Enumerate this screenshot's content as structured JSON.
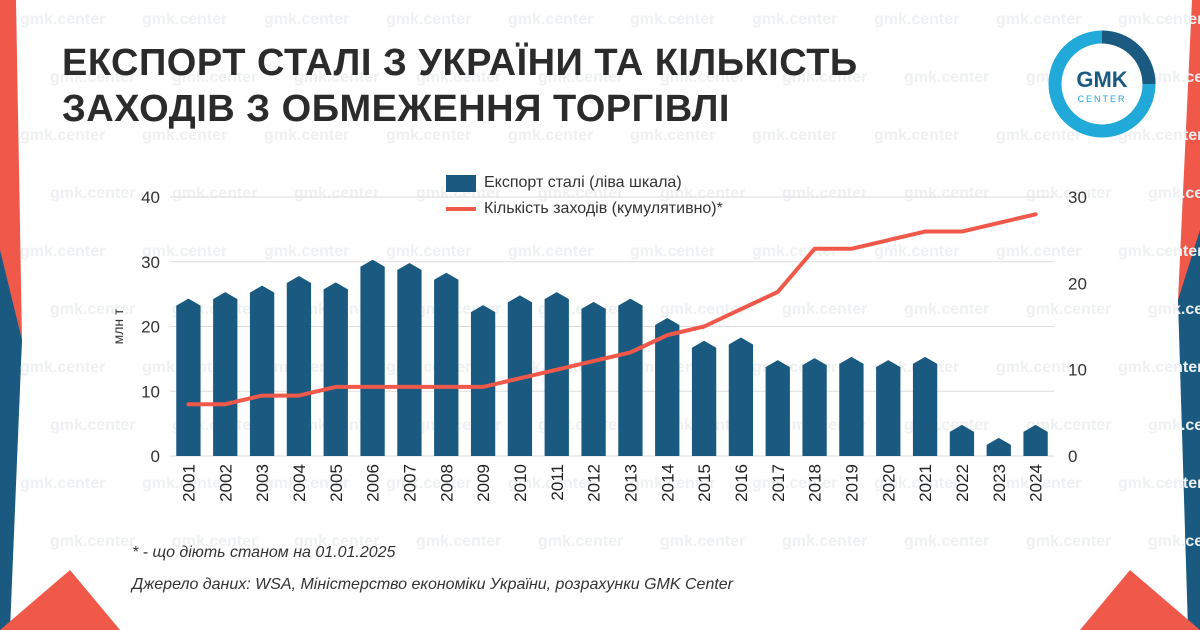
{
  "title_lines": [
    "ЕКСПОРТ СТАЛІ З УКРАЇНИ ТА КІЛЬКІСТЬ",
    "ЗАХОДІВ З ОБМЕЖЕННЯ ТОРГІВЛІ"
  ],
  "logo": {
    "line1": "GMK",
    "line2": "CENTER"
  },
  "watermark_text": "gmk.center",
  "colors": {
    "bar": "#1a5a80",
    "line": "#f0584a",
    "accent": "#f0584a",
    "logo": "#21a9d9",
    "grid": "#dddddd"
  },
  "chart_data": {
    "type": "bar",
    "categories": [
      "2001",
      "2002",
      "2003",
      "2004",
      "2005",
      "2006",
      "2007",
      "2008",
      "2009",
      "2010",
      "2011",
      "2012",
      "2013",
      "2014",
      "2015",
      "2016",
      "2017",
      "2018",
      "2019",
      "2020",
      "2021",
      "2022",
      "2023",
      "2024"
    ],
    "series": [
      {
        "name": "Експорт сталі (ліва шкала)",
        "type": "bar",
        "axis": "left",
        "values": [
          24,
          25,
          26,
          27.5,
          26.5,
          30,
          29.5,
          28,
          23,
          24.5,
          25,
          23.5,
          24,
          21,
          17.5,
          18,
          14.5,
          14.8,
          15,
          14.5,
          15,
          4.5,
          2.5,
          4.5
        ]
      },
      {
        "name": "Кількість заходів (кумулятивно)*",
        "type": "line",
        "axis": "right",
        "values": [
          6,
          6,
          7,
          7,
          8,
          8,
          8,
          8,
          8,
          9,
          10,
          11,
          12,
          14,
          15,
          17,
          19,
          24,
          24,
          25,
          26,
          26,
          27,
          28
        ]
      }
    ],
    "ylabel": "млн т",
    "ylim": [
      0,
      40
    ],
    "yticks": [
      0,
      10,
      20,
      30,
      40
    ],
    "y2lim": [
      0,
      30
    ],
    "y2ticks": [
      0,
      10,
      20,
      30
    ],
    "grid": true,
    "legend_position": "top-center"
  },
  "footnote": "* - що діють станом на 01.01.2025",
  "source": "Джерело даних: WSA, Міністерство економіки України, розрахунки GMK Center"
}
